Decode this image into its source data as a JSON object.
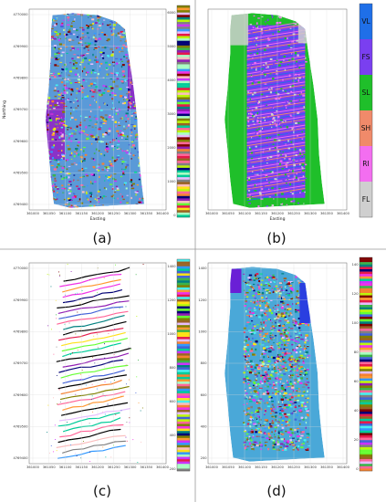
{
  "panels": [
    {
      "id": "a",
      "caption": "(a)",
      "xlabel": "Easting",
      "ylabel": "Northing",
      "xticks": [
        "361000",
        "361050",
        "361100",
        "361150",
        "361200",
        "361250",
        "361300",
        "361350",
        "361400"
      ],
      "yticks": [
        "4769400",
        "4769500",
        "4769600",
        "4769700",
        "4769800",
        "4769900",
        "4770000"
      ],
      "colorbar_type": "striped",
      "colorbar_ticks": [
        "0",
        "1000",
        "2000",
        "3000",
        "4000",
        "5000",
        "6000"
      ],
      "style": "multicolor"
    },
    {
      "id": "b",
      "caption": "(b)",
      "xlabel": "Easting",
      "xticks": [
        "361000",
        "361050",
        "361100",
        "361150",
        "361200",
        "361250",
        "361300",
        "361350",
        "361400"
      ],
      "colorbar_type": "classes",
      "classes": [
        {
          "label": "VL",
          "color": "#1f6fe8"
        },
        {
          "label": "FS",
          "color": "#7a3ff0"
        },
        {
          "label": "SL",
          "color": "#1fbf2a"
        },
        {
          "label": "SH",
          "color": "#f08a6a"
        },
        {
          "label": "RI",
          "color": "#f36ef0"
        },
        {
          "label": "FL",
          "color": "#cfcfcf"
        }
      ],
      "style": "classes"
    },
    {
      "id": "c",
      "caption": "(c)",
      "xlabel": "",
      "ylabel": "",
      "xticks": [
        "361000",
        "361050",
        "361100",
        "361150",
        "361200",
        "361250",
        "361300",
        "361350",
        "361400"
      ],
      "yticks": [
        "4769400",
        "4769500",
        "4769600",
        "4769700",
        "4769800",
        "4769900",
        "4770000"
      ],
      "colorbar_type": "striped",
      "colorbar_ticks": [
        "200",
        "400",
        "600",
        "800",
        "1000",
        "1200",
        "1400"
      ],
      "style": "ridges"
    },
    {
      "id": "d",
      "caption": "(d)",
      "xlabel": "",
      "xticks": [
        "361000",
        "361050",
        "361100",
        "361150",
        "361200",
        "361250",
        "361300",
        "361350",
        "361400"
      ],
      "yticks_left": [
        "200",
        "400",
        "600",
        "800",
        "1000",
        "1200",
        "1400"
      ],
      "colorbar_type": "striped",
      "colorbar_ticks": [
        "0",
        "20",
        "40",
        "60",
        "80",
        "100",
        "120",
        "140"
      ],
      "style": "blue"
    }
  ]
}
